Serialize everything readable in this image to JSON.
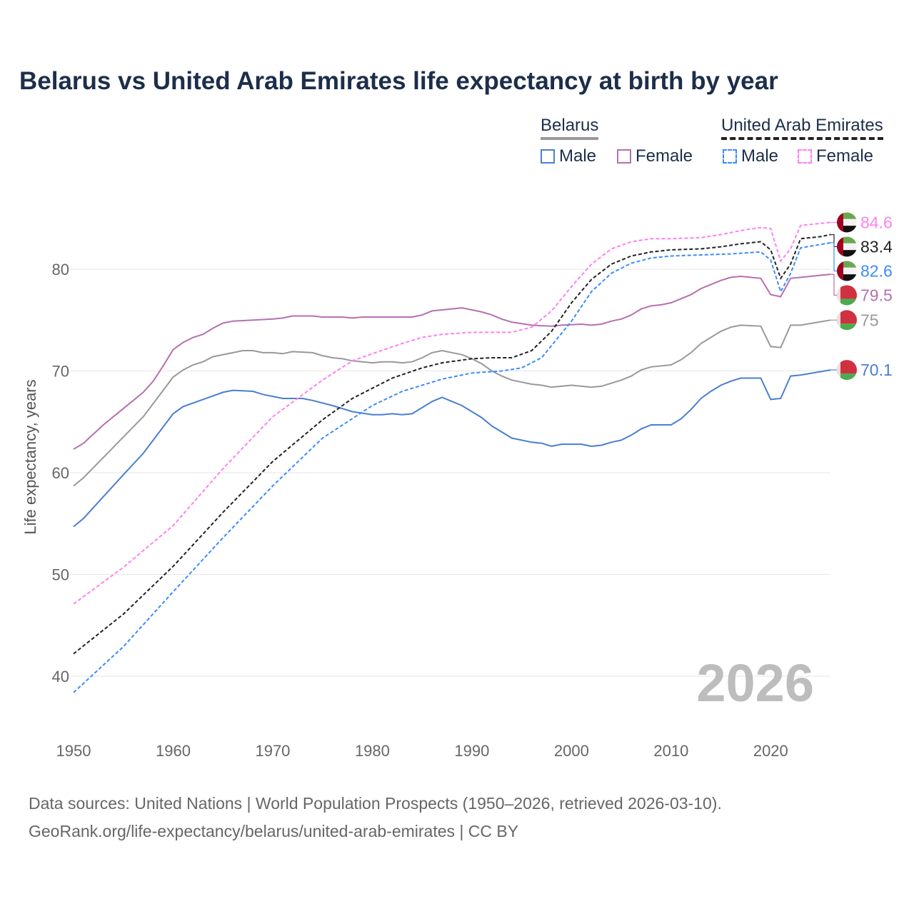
{
  "title": "Belarus vs United Arab Emirates life expectancy at birth by year",
  "legend": {
    "groups": [
      {
        "name": "Belarus",
        "male": "Male",
        "female": "Female"
      },
      {
        "name": "United Arab Emirates",
        "male": "Male",
        "female": "Female"
      }
    ]
  },
  "watermark_year": "2026",
  "source": {
    "line1": "Data sources: United Nations | World Population Prospects (1950–2026, retrieved 2026-03-10).",
    "line2": "GeoRank.org/life-expectancy/belarus/united-arab-emirates | CC BY"
  },
  "chart_data": {
    "type": "line",
    "title": "Belarus vs United Arab Emirates life expectancy at birth by year",
    "xlabel": "",
    "ylabel": "Life expectancy, years",
    "xlim": [
      1950,
      2026
    ],
    "ylim": [
      36,
      86
    ],
    "xticks": [
      1950,
      1960,
      1970,
      1980,
      1990,
      2000,
      2010,
      2020
    ],
    "yticks": [
      40,
      50,
      60,
      70,
      80
    ],
    "grid": true,
    "series": [
      {
        "name": "Belarus Female",
        "country": "Belarus",
        "flag": "belarus-flag",
        "color": "#b670ae",
        "dashed": false,
        "end_label": "79.5",
        "points": [
          [
            1950,
            62.3
          ],
          [
            1951,
            62.9
          ],
          [
            1953,
            64.7
          ],
          [
            1955,
            66.3
          ],
          [
            1957,
            67.9
          ],
          [
            1958,
            69.0
          ],
          [
            1959,
            70.5
          ],
          [
            1960,
            72.1
          ],
          [
            1961,
            72.8
          ],
          [
            1962,
            73.3
          ],
          [
            1963,
            73.6
          ],
          [
            1964,
            74.2
          ],
          [
            1965,
            74.7
          ],
          [
            1966,
            74.9
          ],
          [
            1968,
            75.0
          ],
          [
            1970,
            75.1
          ],
          [
            1971,
            75.2
          ],
          [
            1972,
            75.4
          ],
          [
            1974,
            75.4
          ],
          [
            1975,
            75.3
          ],
          [
            1977,
            75.3
          ],
          [
            1978,
            75.2
          ],
          [
            1979,
            75.3
          ],
          [
            1984,
            75.3
          ],
          [
            1985,
            75.5
          ],
          [
            1986,
            75.9
          ],
          [
            1987,
            76.0
          ],
          [
            1988,
            76.1
          ],
          [
            1989,
            76.2
          ],
          [
            1990,
            76.0
          ],
          [
            1991,
            75.8
          ],
          [
            1992,
            75.5
          ],
          [
            1993,
            75.1
          ],
          [
            1994,
            74.8
          ],
          [
            1996,
            74.5
          ],
          [
            1998,
            74.4
          ],
          [
            1999,
            74.5
          ],
          [
            2001,
            74.6
          ],
          [
            2002,
            74.5
          ],
          [
            2003,
            74.6
          ],
          [
            2004,
            74.9
          ],
          [
            2005,
            75.1
          ],
          [
            2006,
            75.5
          ],
          [
            2007,
            76.1
          ],
          [
            2008,
            76.4
          ],
          [
            2009,
            76.5
          ],
          [
            2010,
            76.7
          ],
          [
            2011,
            77.1
          ],
          [
            2012,
            77.5
          ],
          [
            2013,
            78.1
          ],
          [
            2014,
            78.5
          ],
          [
            2015,
            78.9
          ],
          [
            2016,
            79.2
          ],
          [
            2017,
            79.3
          ],
          [
            2019,
            79.1
          ],
          [
            2020,
            77.5
          ],
          [
            2021,
            77.3
          ],
          [
            2022,
            79.1
          ],
          [
            2024,
            79.3
          ],
          [
            2026,
            79.5
          ]
        ]
      },
      {
        "name": "Belarus",
        "country": "Belarus",
        "flag": "belarus-flag",
        "color": "#999999",
        "dashed": false,
        "end_label": "75",
        "points": [
          [
            1950,
            58.7
          ],
          [
            1951,
            59.5
          ],
          [
            1955,
            63.5
          ],
          [
            1957,
            65.5
          ],
          [
            1958,
            66.8
          ],
          [
            1960,
            69.4
          ],
          [
            1961,
            70.1
          ],
          [
            1962,
            70.6
          ],
          [
            1963,
            70.9
          ],
          [
            1964,
            71.4
          ],
          [
            1966,
            71.8
          ],
          [
            1967,
            72.0
          ],
          [
            1968,
            72.0
          ],
          [
            1969,
            71.8
          ],
          [
            1970,
            71.8
          ],
          [
            1971,
            71.7
          ],
          [
            1972,
            71.9
          ],
          [
            1974,
            71.8
          ],
          [
            1975,
            71.5
          ],
          [
            1976,
            71.3
          ],
          [
            1977,
            71.2
          ],
          [
            1978,
            71.0
          ],
          [
            1980,
            70.8
          ],
          [
            1981,
            70.9
          ],
          [
            1982,
            70.9
          ],
          [
            1983,
            70.8
          ],
          [
            1984,
            70.9
          ],
          [
            1985,
            71.3
          ],
          [
            1986,
            71.8
          ],
          [
            1987,
            72.0
          ],
          [
            1989,
            71.6
          ],
          [
            1990,
            71.2
          ],
          [
            1991,
            70.7
          ],
          [
            1992,
            70.0
          ],
          [
            1993,
            69.5
          ],
          [
            1994,
            69.1
          ],
          [
            1996,
            68.7
          ],
          [
            1997,
            68.6
          ],
          [
            1998,
            68.4
          ],
          [
            1999,
            68.5
          ],
          [
            2000,
            68.6
          ],
          [
            2002,
            68.4
          ],
          [
            2003,
            68.5
          ],
          [
            2004,
            68.8
          ],
          [
            2005,
            69.1
          ],
          [
            2006,
            69.5
          ],
          [
            2007,
            70.1
          ],
          [
            2008,
            70.4
          ],
          [
            2010,
            70.6
          ],
          [
            2011,
            71.1
          ],
          [
            2012,
            71.8
          ],
          [
            2013,
            72.7
          ],
          [
            2014,
            73.3
          ],
          [
            2015,
            73.9
          ],
          [
            2016,
            74.3
          ],
          [
            2017,
            74.5
          ],
          [
            2019,
            74.4
          ],
          [
            2020,
            72.4
          ],
          [
            2021,
            72.3
          ],
          [
            2022,
            74.5
          ],
          [
            2023,
            74.5
          ],
          [
            2026,
            75.0
          ]
        ]
      },
      {
        "name": "Belarus Male",
        "country": "Belarus",
        "flag": "belarus-flag",
        "color": "#4a7fd1",
        "dashed": false,
        "end_label": "70.1",
        "points": [
          [
            1950,
            54.7
          ],
          [
            1951,
            55.5
          ],
          [
            1955,
            59.8
          ],
          [
            1957,
            61.9
          ],
          [
            1960,
            65.8
          ],
          [
            1961,
            66.5
          ],
          [
            1963,
            67.2
          ],
          [
            1965,
            67.9
          ],
          [
            1966,
            68.1
          ],
          [
            1968,
            68.0
          ],
          [
            1969,
            67.7
          ],
          [
            1971,
            67.3
          ],
          [
            1973,
            67.3
          ],
          [
            1974,
            67.1
          ],
          [
            1976,
            66.6
          ],
          [
            1978,
            66.0
          ],
          [
            1980,
            65.7
          ],
          [
            1981,
            65.7
          ],
          [
            1982,
            65.8
          ],
          [
            1983,
            65.7
          ],
          [
            1984,
            65.8
          ],
          [
            1986,
            67.0
          ],
          [
            1987,
            67.4
          ],
          [
            1989,
            66.6
          ],
          [
            1991,
            65.4
          ],
          [
            1992,
            64.6
          ],
          [
            1994,
            63.4
          ],
          [
            1996,
            63.0
          ],
          [
            1997,
            62.9
          ],
          [
            1998,
            62.6
          ],
          [
            1999,
            62.8
          ],
          [
            2001,
            62.8
          ],
          [
            2002,
            62.6
          ],
          [
            2003,
            62.7
          ],
          [
            2004,
            63.0
          ],
          [
            2005,
            63.2
          ],
          [
            2006,
            63.7
          ],
          [
            2007,
            64.3
          ],
          [
            2008,
            64.7
          ],
          [
            2010,
            64.7
          ],
          [
            2011,
            65.3
          ],
          [
            2012,
            66.2
          ],
          [
            2013,
            67.3
          ],
          [
            2014,
            68.0
          ],
          [
            2015,
            68.6
          ],
          [
            2016,
            69.0
          ],
          [
            2017,
            69.3
          ],
          [
            2019,
            69.3
          ],
          [
            2020,
            67.2
          ],
          [
            2021,
            67.3
          ],
          [
            2022,
            69.5
          ],
          [
            2023,
            69.6
          ],
          [
            2026,
            70.1
          ]
        ]
      },
      {
        "name": "United Arab Emirates Female",
        "country": "United Arab Emirates",
        "flag": "uae-flag",
        "color": "#ff80f0",
        "dashed": true,
        "end_label": "84.6",
        "points": [
          [
            1950,
            47.1
          ],
          [
            1955,
            50.7
          ],
          [
            1960,
            54.8
          ],
          [
            1965,
            60.4
          ],
          [
            1970,
            65.5
          ],
          [
            1975,
            69.1
          ],
          [
            1978,
            71.0
          ],
          [
            1980,
            71.7
          ],
          [
            1983,
            72.7
          ],
          [
            1985,
            73.3
          ],
          [
            1987,
            73.6
          ],
          [
            1990,
            73.8
          ],
          [
            1994,
            73.8
          ],
          [
            1996,
            74.3
          ],
          [
            1998,
            75.9
          ],
          [
            2000,
            78.3
          ],
          [
            2002,
            80.5
          ],
          [
            2004,
            82.0
          ],
          [
            2006,
            82.7
          ],
          [
            2008,
            83.0
          ],
          [
            2010,
            83.0
          ],
          [
            2013,
            83.1
          ],
          [
            2015,
            83.4
          ],
          [
            2017,
            83.8
          ],
          [
            2019,
            84.1
          ],
          [
            2020,
            84.0
          ],
          [
            2021,
            80.8
          ],
          [
            2022,
            82.0
          ],
          [
            2023,
            84.3
          ],
          [
            2025,
            84.5
          ],
          [
            2026,
            84.6
          ]
        ]
      },
      {
        "name": "United Arab Emirates",
        "country": "United Arab Emirates",
        "flag": "uae-flag",
        "color": "#222222",
        "dashed": true,
        "end_label": "83.4",
        "points": [
          [
            1950,
            42.2
          ],
          [
            1955,
            46.1
          ],
          [
            1960,
            50.8
          ],
          [
            1965,
            56.1
          ],
          [
            1970,
            61.1
          ],
          [
            1975,
            65.2
          ],
          [
            1978,
            67.3
          ],
          [
            1980,
            68.3
          ],
          [
            1982,
            69.3
          ],
          [
            1985,
            70.3
          ],
          [
            1987,
            70.8
          ],
          [
            1990,
            71.2
          ],
          [
            1992,
            71.3
          ],
          [
            1994,
            71.3
          ],
          [
            1996,
            72.0
          ],
          [
            1998,
            73.9
          ],
          [
            2000,
            76.7
          ],
          [
            2002,
            79.0
          ],
          [
            2004,
            80.5
          ],
          [
            2006,
            81.3
          ],
          [
            2008,
            81.7
          ],
          [
            2010,
            81.9
          ],
          [
            2013,
            82.0
          ],
          [
            2015,
            82.2
          ],
          [
            2017,
            82.5
          ],
          [
            2019,
            82.7
          ],
          [
            2020,
            81.9
          ],
          [
            2021,
            79.1
          ],
          [
            2022,
            80.5
          ],
          [
            2023,
            83.0
          ],
          [
            2025,
            83.2
          ],
          [
            2026,
            83.4
          ]
        ]
      },
      {
        "name": "United Arab Emirates Male",
        "country": "United Arab Emirates",
        "flag": "uae-flag",
        "color": "#3b8bff",
        "dashed": true,
        "end_label": "82.6",
        "points": [
          [
            1950,
            38.4
          ],
          [
            1955,
            42.9
          ],
          [
            1960,
            48.3
          ],
          [
            1965,
            53.6
          ],
          [
            1970,
            58.7
          ],
          [
            1975,
            63.4
          ],
          [
            1980,
            66.6
          ],
          [
            1983,
            68.0
          ],
          [
            1985,
            68.6
          ],
          [
            1987,
            69.2
          ],
          [
            1990,
            69.8
          ],
          [
            1993,
            70.0
          ],
          [
            1995,
            70.3
          ],
          [
            1997,
            71.3
          ],
          [
            2000,
            74.9
          ],
          [
            2002,
            77.8
          ],
          [
            2004,
            79.6
          ],
          [
            2006,
            80.6
          ],
          [
            2008,
            81.1
          ],
          [
            2010,
            81.3
          ],
          [
            2013,
            81.4
          ],
          [
            2016,
            81.5
          ],
          [
            2019,
            81.7
          ],
          [
            2020,
            80.9
          ],
          [
            2021,
            77.8
          ],
          [
            2022,
            79.6
          ],
          [
            2023,
            82.1
          ],
          [
            2026,
            82.6
          ]
        ]
      }
    ]
  }
}
